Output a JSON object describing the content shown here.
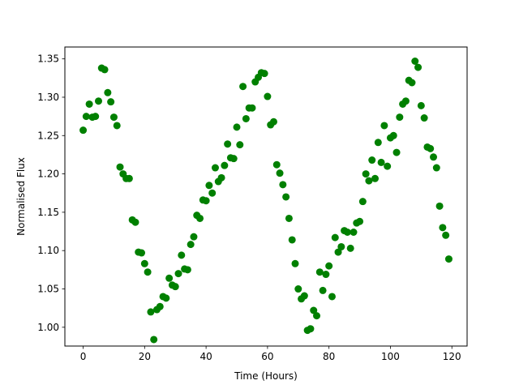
{
  "chart_data": {
    "type": "scatter",
    "title": "",
    "xlabel": "Time (Hours)",
    "ylabel": "Normalised Flux",
    "xlim": [
      -5.95,
      124.95
    ],
    "ylim": [
      0.9755,
      1.3655
    ],
    "xticks": [
      0,
      20,
      40,
      60,
      80,
      100,
      120
    ],
    "xtick_labels": [
      "0",
      "20",
      "40",
      "60",
      "80",
      "100",
      "120"
    ],
    "yticks": [
      1.0,
      1.05,
      1.1,
      1.15,
      1.2,
      1.25,
      1.3,
      1.35
    ],
    "ytick_labels": [
      "1.00",
      "1.05",
      "1.10",
      "1.15",
      "1.20",
      "1.25",
      "1.30",
      "1.35"
    ],
    "grid": false,
    "marker_color": "#008000",
    "series": [
      {
        "x": [
          0,
          1,
          2,
          3,
          4,
          5,
          6,
          7,
          8,
          9,
          10,
          11,
          12,
          13,
          14,
          15,
          16,
          17,
          18,
          19,
          20,
          21,
          22,
          23,
          24,
          25,
          26,
          27,
          28,
          29,
          30,
          31,
          32,
          33,
          34,
          35,
          36,
          37,
          38,
          39,
          40,
          41,
          42,
          43,
          44,
          45,
          46,
          47,
          48,
          49,
          50,
          51,
          52,
          53,
          54,
          55,
          56,
          57,
          58,
          59,
          60,
          61,
          62,
          63,
          64,
          65,
          66,
          67,
          68,
          69,
          70,
          71,
          72,
          73,
          74,
          75,
          76,
          77,
          78,
          79,
          80,
          81,
          82,
          83,
          84,
          85,
          86,
          87,
          88,
          89,
          90,
          91,
          92,
          93,
          94,
          95,
          96,
          97,
          98,
          99,
          100,
          101,
          102,
          103,
          104,
          105,
          106,
          107,
          108,
          109,
          110,
          111,
          112,
          113,
          114,
          115,
          116,
          117,
          118,
          119
        ],
        "y": [
          1.257,
          1.275,
          1.291,
          1.274,
          1.275,
          1.295,
          1.338,
          1.336,
          1.306,
          1.294,
          1.274,
          1.263,
          1.209,
          1.2,
          1.194,
          1.194,
          1.14,
          1.137,
          1.098,
          1.097,
          1.083,
          1.072,
          1.02,
          0.984,
          1.023,
          1.027,
          1.04,
          1.038,
          1.064,
          1.055,
          1.053,
          1.07,
          1.094,
          1.076,
          1.075,
          1.108,
          1.118,
          1.146,
          1.142,
          1.166,
          1.165,
          1.185,
          1.175,
          1.208,
          1.19,
          1.195,
          1.211,
          1.239,
          1.221,
          1.22,
          1.261,
          1.238,
          1.314,
          1.272,
          1.286,
          1.286,
          1.32,
          1.326,
          1.332,
          1.331,
          1.301,
          1.264,
          1.268,
          1.212,
          1.201,
          1.186,
          1.17,
          1.142,
          1.114,
          1.083,
          1.05,
          1.037,
          1.041,
          0.996,
          0.998,
          1.022,
          1.015,
          1.072,
          1.048,
          1.069,
          1.08,
          1.04,
          1.117,
          1.098,
          1.105,
          1.126,
          1.124,
          1.103,
          1.124,
          1.136,
          1.138,
          1.164,
          1.2,
          1.191,
          1.218,
          1.194,
          1.241,
          1.215,
          1.263,
          1.21,
          1.247,
          1.25,
          1.228,
          1.274,
          1.291,
          1.295,
          1.322,
          1.319,
          1.347,
          1.339,
          1.289,
          1.273,
          1.235,
          1.233,
          1.222,
          1.208,
          1.158,
          1.13,
          1.12,
          1.089
        ]
      }
    ]
  }
}
